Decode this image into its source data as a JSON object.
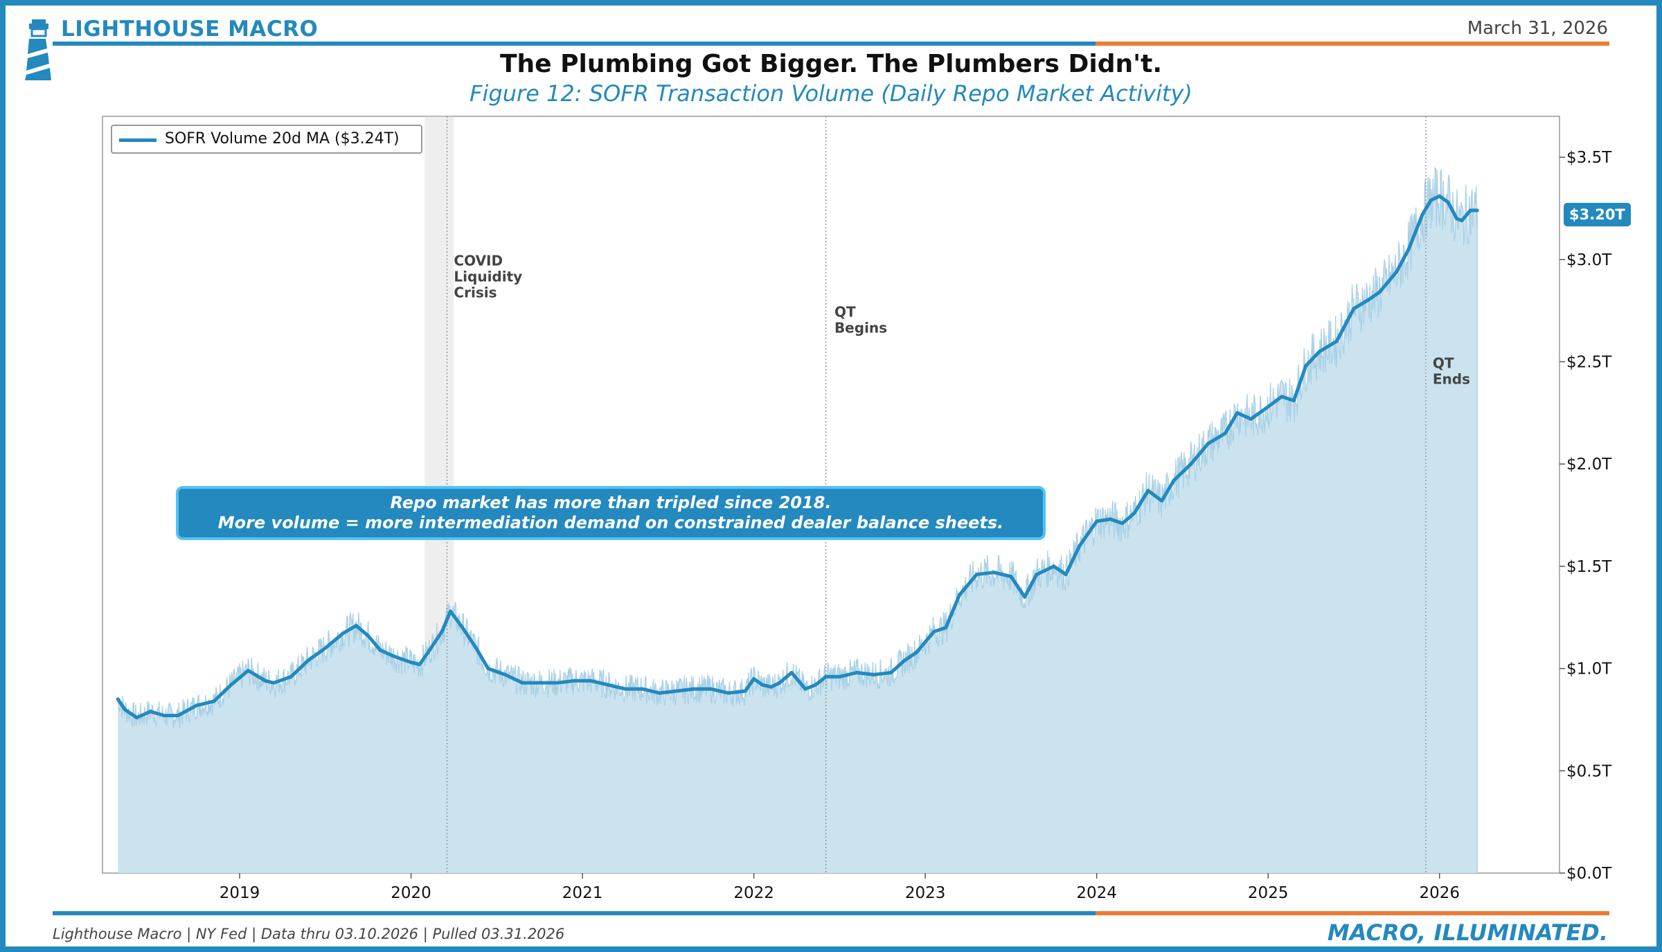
{
  "header": {
    "brand": "LIGHTHOUSE MACRO",
    "date": "March 31, 2026",
    "title": "The Plumbing Got Bigger. The Plumbers Didn't.",
    "subtitle": "Figure 12: SOFR Transaction Volume (Daily Repo Market Activity)"
  },
  "footer": {
    "source": "Lighthouse Macro | NY Fed | Data thru 03.10.2026 | Pulled 03.31.2026",
    "tagline": "MACRO, ILLUMINATED."
  },
  "callout": {
    "line1": "Repo market has more than tripled since 2018.",
    "line2": "More volume = more intermediation demand on constrained dealer balance sheets."
  },
  "legend": {
    "label": "SOFR Volume 20d MA ($3.24T)"
  },
  "last_value_label": "$3.20T",
  "colors": {
    "accent": "#2389be",
    "orange": "#f07a35",
    "fill": "#c7e1ee",
    "raw": "#a9d0e5",
    "shade": "#d9d9d9"
  },
  "chart_data": {
    "type": "area",
    "title": "SOFR Transaction Volume (Daily Repo Market Activity)",
    "xlabel": "",
    "ylabel": "",
    "xlim": [
      2018.2,
      2026.7
    ],
    "ylim": [
      0,
      3.7
    ],
    "y_ticks": [
      0,
      0.5,
      1.0,
      1.5,
      2.0,
      2.5,
      3.0,
      3.5
    ],
    "y_tick_labels": [
      "$0.0T",
      "$0.5T",
      "$1.0T",
      "$1.5T",
      "$2.0T",
      "$2.5T",
      "$3.0T",
      "$3.5T"
    ],
    "x_ticks": [
      2019,
      2020,
      2021,
      2022,
      2023,
      2024,
      2025,
      2026
    ],
    "x_tick_labels": [
      "2019",
      "2020",
      "2021",
      "2022",
      "2023",
      "2024",
      "2025",
      "2026"
    ],
    "y_axis_side": "right",
    "legend_position": "top-left",
    "series": [
      {
        "name": "SOFR Volume 20d MA ($3.24T)",
        "x": [
          2018.29,
          2018.33,
          2018.4,
          2018.48,
          2018.56,
          2018.64,
          2018.75,
          2018.85,
          2018.95,
          2019.05,
          2019.15,
          2019.2,
          2019.3,
          2019.4,
          2019.5,
          2019.6,
          2019.68,
          2019.75,
          2019.82,
          2019.9,
          2020.0,
          2020.05,
          2020.1,
          2020.18,
          2020.23,
          2020.3,
          2020.38,
          2020.45,
          2020.55,
          2020.65,
          2020.75,
          2020.85,
          2020.95,
          2021.05,
          2021.15,
          2021.25,
          2021.35,
          2021.45,
          2021.55,
          2021.65,
          2021.75,
          2021.85,
          2021.95,
          2022.0,
          2022.05,
          2022.1,
          2022.15,
          2022.22,
          2022.3,
          2022.36,
          2022.42,
          2022.5,
          2022.6,
          2022.7,
          2022.8,
          2022.88,
          2022.95,
          2023.05,
          2023.12,
          2023.2,
          2023.3,
          2023.4,
          2023.5,
          2023.58,
          2023.65,
          2023.75,
          2023.82,
          2023.9,
          2024.0,
          2024.08,
          2024.15,
          2024.22,
          2024.3,
          2024.38,
          2024.45,
          2024.55,
          2024.65,
          2024.75,
          2024.82,
          2024.9,
          2025.0,
          2025.08,
          2025.15,
          2025.22,
          2025.3,
          2025.4,
          2025.5,
          2025.58,
          2025.65,
          2025.75,
          2025.82,
          2025.9,
          2025.95,
          2026.0,
          2026.05,
          2026.1,
          2026.13,
          2026.18,
          2026.22
        ],
        "values": [
          0.85,
          0.8,
          0.76,
          0.79,
          0.77,
          0.77,
          0.82,
          0.84,
          0.92,
          0.99,
          0.94,
          0.93,
          0.96,
          1.04,
          1.1,
          1.17,
          1.21,
          1.16,
          1.09,
          1.06,
          1.03,
          1.02,
          1.08,
          1.18,
          1.28,
          1.2,
          1.1,
          1.0,
          0.97,
          0.93,
          0.93,
          0.93,
          0.94,
          0.94,
          0.92,
          0.9,
          0.9,
          0.88,
          0.89,
          0.9,
          0.9,
          0.88,
          0.89,
          0.95,
          0.92,
          0.91,
          0.93,
          0.98,
          0.9,
          0.92,
          0.96,
          0.96,
          0.98,
          0.97,
          0.98,
          1.04,
          1.08,
          1.18,
          1.2,
          1.36,
          1.46,
          1.47,
          1.45,
          1.35,
          1.46,
          1.5,
          1.46,
          1.6,
          1.72,
          1.73,
          1.71,
          1.76,
          1.87,
          1.82,
          1.92,
          2.0,
          2.1,
          2.15,
          2.25,
          2.22,
          2.28,
          2.33,
          2.31,
          2.48,
          2.55,
          2.6,
          2.76,
          2.8,
          2.84,
          2.94,
          3.05,
          3.22,
          3.29,
          3.31,
          3.28,
          3.2,
          3.19,
          3.24,
          3.24
        ]
      }
    ],
    "shaded_regions": [
      {
        "label": "COVID Liquidity Crisis",
        "x_start": 2020.08,
        "x_end": 2020.25
      }
    ],
    "event_lines": [
      {
        "x": 2020.21,
        "label_lines": []
      },
      {
        "x": 2022.42,
        "label_lines": [
          "QT",
          "Begins"
        ]
      },
      {
        "x": 2025.92,
        "label_lines": []
      }
    ],
    "annotations": [
      {
        "x": 2020.25,
        "y": 2.97,
        "lines": [
          "COVID",
          "Liquidity",
          "Crisis"
        ]
      },
      {
        "x": 2022.47,
        "y": 2.72,
        "lines": [
          "QT",
          "Begins"
        ]
      },
      {
        "x": 2025.96,
        "y": 2.47,
        "lines": [
          "QT",
          "Ends"
        ]
      }
    ]
  }
}
